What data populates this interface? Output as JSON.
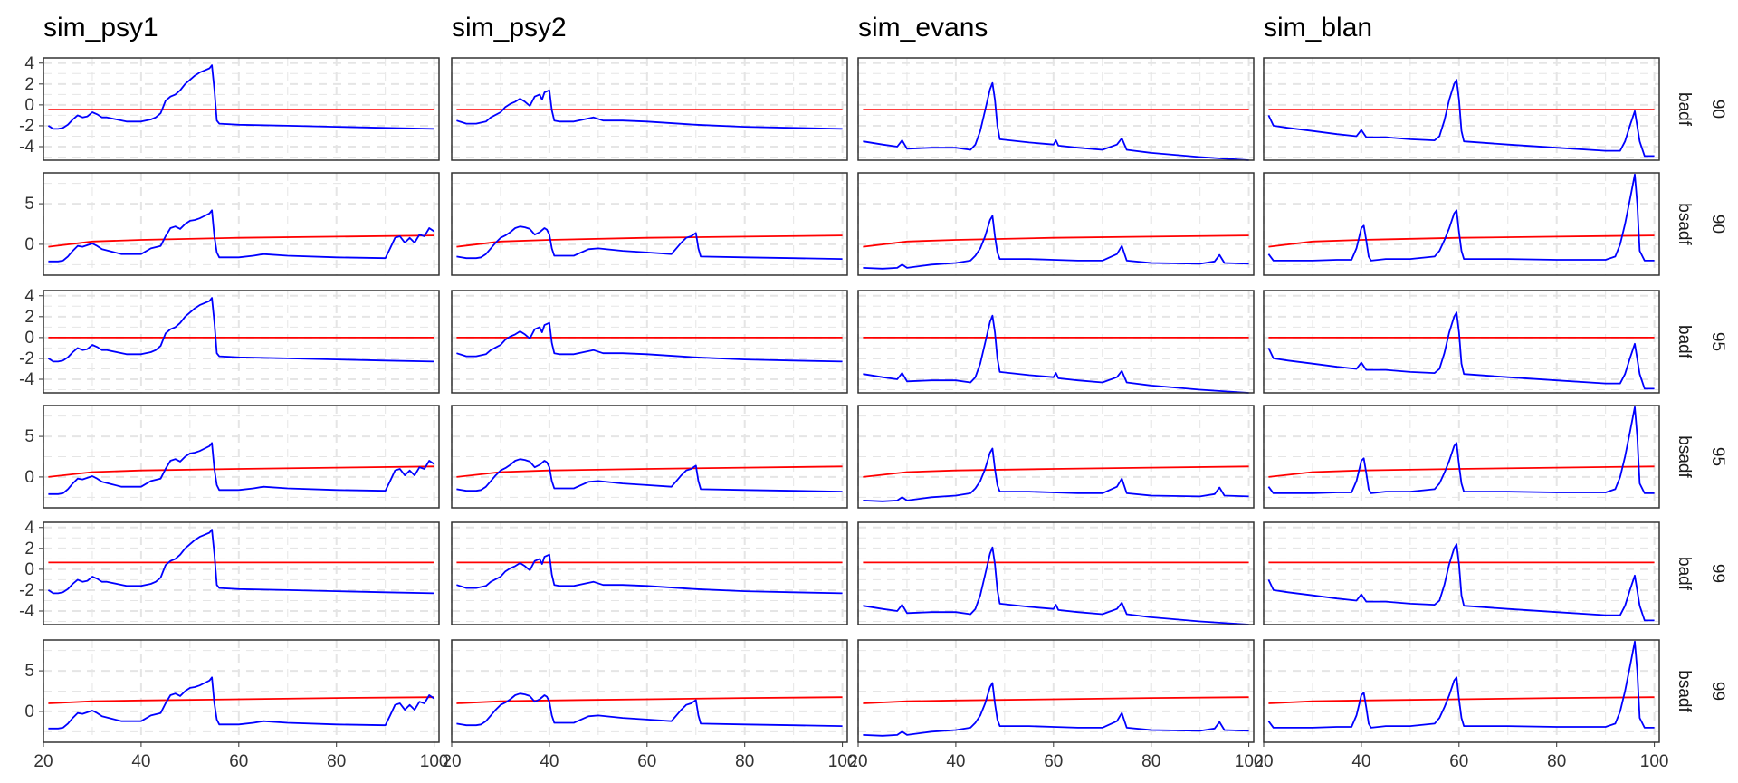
{
  "chart_data": {
    "type": "line",
    "facet_columns": [
      "sim_psy1",
      "sim_psy2",
      "sim_evans",
      "sim_blan"
    ],
    "facet_rows": [
      {
        "stat": "badf",
        "level": "90"
      },
      {
        "stat": "bsadf",
        "level": "90"
      },
      {
        "stat": "badf",
        "level": "95"
      },
      {
        "stat": "bsadf",
        "level": "95"
      },
      {
        "stat": "badf",
        "level": "99"
      },
      {
        "stat": "bsadf",
        "level": "99"
      }
    ],
    "x_range": [
      20,
      101
    ],
    "x_ticks": [
      20,
      40,
      60,
      80,
      100
    ],
    "badf_ylim": [
      -5.3,
      4.5
    ],
    "badf_y_ticks": [
      4,
      2,
      0,
      -2,
      -4
    ],
    "bsadf_ylim": [
      -3.8,
      8.8
    ],
    "bsadf_y_ticks": [
      5,
      0
    ],
    "grid": true,
    "line_colors": {
      "statistic": "#0000ff",
      "critical_value": "#ff0000"
    },
    "critical_values": {
      "badf": {
        "90": -0.45,
        "95": 0.0,
        "99": 0.65
      },
      "bsadf": {
        "90": [
          [
            21,
            -0.3
          ],
          [
            30,
            0.35
          ],
          [
            40,
            0.55
          ],
          [
            60,
            0.8
          ],
          [
            80,
            0.95
          ],
          [
            100,
            1.1
          ]
        ],
        "95": [
          [
            21,
            0.0
          ],
          [
            30,
            0.6
          ],
          [
            40,
            0.8
          ],
          [
            60,
            1.0
          ],
          [
            80,
            1.15
          ],
          [
            100,
            1.3
          ]
        ],
        "99": [
          [
            21,
            1.0
          ],
          [
            30,
            1.25
          ],
          [
            40,
            1.35
          ],
          [
            60,
            1.5
          ],
          [
            80,
            1.65
          ],
          [
            100,
            1.75
          ]
        ]
      }
    },
    "series": {
      "sim_psy1": {
        "badf": [
          [
            21,
            -2.0
          ],
          [
            22,
            -2.3
          ],
          [
            23,
            -2.3
          ],
          [
            24,
            -2.2
          ],
          [
            25,
            -1.9
          ],
          [
            26,
            -1.4
          ],
          [
            27,
            -1.0
          ],
          [
            28,
            -1.2
          ],
          [
            29,
            -1.1
          ],
          [
            30,
            -0.7
          ],
          [
            31,
            -0.9
          ],
          [
            32,
            -1.2
          ],
          [
            33,
            -1.2
          ],
          [
            35,
            -1.4
          ],
          [
            37,
            -1.6
          ],
          [
            40,
            -1.6
          ],
          [
            42,
            -1.4
          ],
          [
            43,
            -1.2
          ],
          [
            44,
            -0.8
          ],
          [
            45,
            0.4
          ],
          [
            46,
            0.8
          ],
          [
            47,
            1.0
          ],
          [
            48,
            1.4
          ],
          [
            49,
            2.0
          ],
          [
            50,
            2.4
          ],
          [
            51,
            2.8
          ],
          [
            52,
            3.1
          ],
          [
            53,
            3.3
          ],
          [
            54,
            3.5
          ],
          [
            54.5,
            3.8
          ],
          [
            55,
            1.5
          ],
          [
            55.5,
            -1.5
          ],
          [
            56,
            -1.8
          ],
          [
            60,
            -1.9
          ],
          [
            70,
            -2.0
          ],
          [
            80,
            -2.1
          ],
          [
            90,
            -2.2
          ],
          [
            100,
            -2.3
          ]
        ],
        "bsadf": [
          [
            21,
            -2.1
          ],
          [
            23,
            -2.1
          ],
          [
            24,
            -2.0
          ],
          [
            25,
            -1.5
          ],
          [
            26,
            -0.8
          ],
          [
            27,
            -0.2
          ],
          [
            28,
            -0.3
          ],
          [
            30,
            0.1
          ],
          [
            31,
            -0.2
          ],
          [
            32,
            -0.6
          ],
          [
            34,
            -0.9
          ],
          [
            36,
            -1.2
          ],
          [
            40,
            -1.2
          ],
          [
            42,
            -0.5
          ],
          [
            44,
            -0.2
          ],
          [
            45,
            1.0
          ],
          [
            46,
            2.0
          ],
          [
            47,
            2.2
          ],
          [
            48,
            1.9
          ],
          [
            49,
            2.5
          ],
          [
            50,
            2.9
          ],
          [
            51,
            3.0
          ],
          [
            52,
            3.2
          ],
          [
            53,
            3.5
          ],
          [
            54,
            3.8
          ],
          [
            54.5,
            4.2
          ],
          [
            55,
            1.0
          ],
          [
            55.5,
            -1.0
          ],
          [
            56,
            -1.6
          ],
          [
            60,
            -1.6
          ],
          [
            63,
            -1.4
          ],
          [
            65,
            -1.2
          ],
          [
            70,
            -1.4
          ],
          [
            80,
            -1.6
          ],
          [
            90,
            -1.7
          ],
          [
            91,
            -0.5
          ],
          [
            92,
            0.8
          ],
          [
            93,
            1.0
          ],
          [
            94,
            0.2
          ],
          [
            95,
            0.8
          ],
          [
            96,
            0.2
          ],
          [
            97,
            1.2
          ],
          [
            98,
            1.0
          ],
          [
            99,
            2.0
          ],
          [
            100,
            1.6
          ]
        ]
      },
      "sim_psy2": {
        "badf": [
          [
            21,
            -1.5
          ],
          [
            23,
            -1.8
          ],
          [
            25,
            -1.8
          ],
          [
            27,
            -1.6
          ],
          [
            28,
            -1.2
          ],
          [
            30,
            -0.7
          ],
          [
            31,
            -0.2
          ],
          [
            32,
            0.1
          ],
          [
            33,
            0.3
          ],
          [
            34,
            0.6
          ],
          [
            35,
            0.3
          ],
          [
            36,
            -0.1
          ],
          [
            37,
            0.8
          ],
          [
            38,
            1.0
          ],
          [
            38.5,
            0.5
          ],
          [
            39,
            1.2
          ],
          [
            40,
            1.4
          ],
          [
            40.5,
            -0.5
          ],
          [
            41,
            -1.5
          ],
          [
            42,
            -1.6
          ],
          [
            45,
            -1.6
          ],
          [
            47,
            -1.4
          ],
          [
            49,
            -1.2
          ],
          [
            51,
            -1.5
          ],
          [
            55,
            -1.5
          ],
          [
            60,
            -1.6
          ],
          [
            70,
            -1.9
          ],
          [
            80,
            -2.1
          ],
          [
            90,
            -2.2
          ],
          [
            100,
            -2.3
          ]
        ],
        "bsadf": [
          [
            21,
            -1.5
          ],
          [
            23,
            -1.7
          ],
          [
            25,
            -1.7
          ],
          [
            26,
            -1.6
          ],
          [
            27,
            -1.2
          ],
          [
            28,
            -0.5
          ],
          [
            29,
            0.2
          ],
          [
            30,
            0.8
          ],
          [
            31,
            1.1
          ],
          [
            32,
            1.5
          ],
          [
            33,
            2.0
          ],
          [
            34,
            2.2
          ],
          [
            35,
            2.1
          ],
          [
            36,
            1.9
          ],
          [
            37,
            1.2
          ],
          [
            38,
            1.5
          ],
          [
            39,
            2.0
          ],
          [
            39.5,
            1.8
          ],
          [
            40,
            1.2
          ],
          [
            40.5,
            -0.5
          ],
          [
            41,
            -1.4
          ],
          [
            45,
            -1.4
          ],
          [
            48,
            -0.6
          ],
          [
            50,
            -0.5
          ],
          [
            55,
            -0.8
          ],
          [
            60,
            -1.0
          ],
          [
            65,
            -1.2
          ],
          [
            66,
            -0.5
          ],
          [
            67,
            0.2
          ],
          [
            68,
            0.8
          ],
          [
            69,
            1.0
          ],
          [
            70,
            1.4
          ],
          [
            70.5,
            -0.5
          ],
          [
            71,
            -1.5
          ],
          [
            80,
            -1.6
          ],
          [
            90,
            -1.7
          ],
          [
            100,
            -1.8
          ]
        ]
      },
      "sim_evans": {
        "badf": [
          [
            21,
            -3.5
          ],
          [
            25,
            -3.8
          ],
          [
            28,
            -4.0
          ],
          [
            29,
            -3.4
          ],
          [
            30,
            -4.2
          ],
          [
            35,
            -4.1
          ],
          [
            40,
            -4.1
          ],
          [
            43,
            -4.3
          ],
          [
            44,
            -3.8
          ],
          [
            45,
            -2.5
          ],
          [
            46,
            -0.5
          ],
          [
            47,
            1.5
          ],
          [
            47.5,
            2.1
          ],
          [
            48,
            0.5
          ],
          [
            48.5,
            -2.0
          ],
          [
            49,
            -3.3
          ],
          [
            55,
            -3.6
          ],
          [
            60,
            -3.8
          ],
          [
            60.5,
            -3.4
          ],
          [
            61,
            -3.9
          ],
          [
            65,
            -4.1
          ],
          [
            70,
            -4.3
          ],
          [
            73,
            -3.8
          ],
          [
            74,
            -3.2
          ],
          [
            75,
            -4.3
          ],
          [
            80,
            -4.6
          ],
          [
            90,
            -5.0
          ],
          [
            100,
            -5.3
          ]
        ],
        "bsadf": [
          [
            21,
            -2.9
          ],
          [
            25,
            -3.0
          ],
          [
            28,
            -2.9
          ],
          [
            29,
            -2.5
          ],
          [
            30,
            -2.9
          ],
          [
            35,
            -2.5
          ],
          [
            40,
            -2.3
          ],
          [
            43,
            -2.0
          ],
          [
            44,
            -1.4
          ],
          [
            45,
            -0.5
          ],
          [
            46,
            1.0
          ],
          [
            47,
            3.0
          ],
          [
            47.5,
            3.5
          ],
          [
            48,
            1.0
          ],
          [
            48.5,
            -1.0
          ],
          [
            49,
            -1.8
          ],
          [
            55,
            -1.8
          ],
          [
            60,
            -1.9
          ],
          [
            65,
            -2.0
          ],
          [
            70,
            -2.0
          ],
          [
            73,
            -1.2
          ],
          [
            74,
            -0.2
          ],
          [
            75,
            -2.0
          ],
          [
            80,
            -2.3
          ],
          [
            90,
            -2.4
          ],
          [
            93,
            -2.1
          ],
          [
            94,
            -1.3
          ],
          [
            95,
            -2.3
          ],
          [
            100,
            -2.4
          ]
        ]
      },
      "sim_blan": {
        "badf": [
          [
            21,
            -1.0
          ],
          [
            22,
            -2.0
          ],
          [
            25,
            -2.2
          ],
          [
            30,
            -2.5
          ],
          [
            35,
            -2.8
          ],
          [
            39,
            -3.0
          ],
          [
            40,
            -2.4
          ],
          [
            41,
            -3.1
          ],
          [
            45,
            -3.1
          ],
          [
            50,
            -3.3
          ],
          [
            55,
            -3.4
          ],
          [
            56,
            -3.0
          ],
          [
            57,
            -1.5
          ],
          [
            58,
            0.5
          ],
          [
            59,
            2.0
          ],
          [
            59.5,
            2.4
          ],
          [
            60,
            0.5
          ],
          [
            60.5,
            -2.5
          ],
          [
            61,
            -3.5
          ],
          [
            70,
            -3.8
          ],
          [
            80,
            -4.1
          ],
          [
            90,
            -4.4
          ],
          [
            93,
            -4.4
          ],
          [
            94,
            -3.5
          ],
          [
            95,
            -2.0
          ],
          [
            96,
            -0.6
          ],
          [
            97,
            -3.5
          ],
          [
            98,
            -4.9
          ],
          [
            100,
            -4.9
          ]
        ],
        "bsadf": [
          [
            21,
            -1.2
          ],
          [
            22,
            -2.0
          ],
          [
            25,
            -2.0
          ],
          [
            30,
            -2.0
          ],
          [
            35,
            -1.9
          ],
          [
            38,
            -1.9
          ],
          [
            39,
            -0.5
          ],
          [
            40,
            2.0
          ],
          [
            40.5,
            2.3
          ],
          [
            41,
            0.5
          ],
          [
            41.5,
            -1.5
          ],
          [
            42,
            -2.0
          ],
          [
            45,
            -1.8
          ],
          [
            50,
            -1.8
          ],
          [
            55,
            -1.5
          ],
          [
            56,
            -0.8
          ],
          [
            57,
            0.5
          ],
          [
            58,
            2.0
          ],
          [
            59,
            3.8
          ],
          [
            59.5,
            4.2
          ],
          [
            60,
            1.5
          ],
          [
            60.5,
            -0.8
          ],
          [
            61,
            -1.8
          ],
          [
            70,
            -1.8
          ],
          [
            80,
            -1.9
          ],
          [
            90,
            -1.9
          ],
          [
            92,
            -1.5
          ],
          [
            93,
            0.0
          ],
          [
            94,
            2.5
          ],
          [
            95,
            5.5
          ],
          [
            96,
            8.6
          ],
          [
            96.5,
            5.0
          ],
          [
            97,
            -0.8
          ],
          [
            98,
            -2.0
          ],
          [
            100,
            -2.0
          ]
        ]
      }
    }
  }
}
